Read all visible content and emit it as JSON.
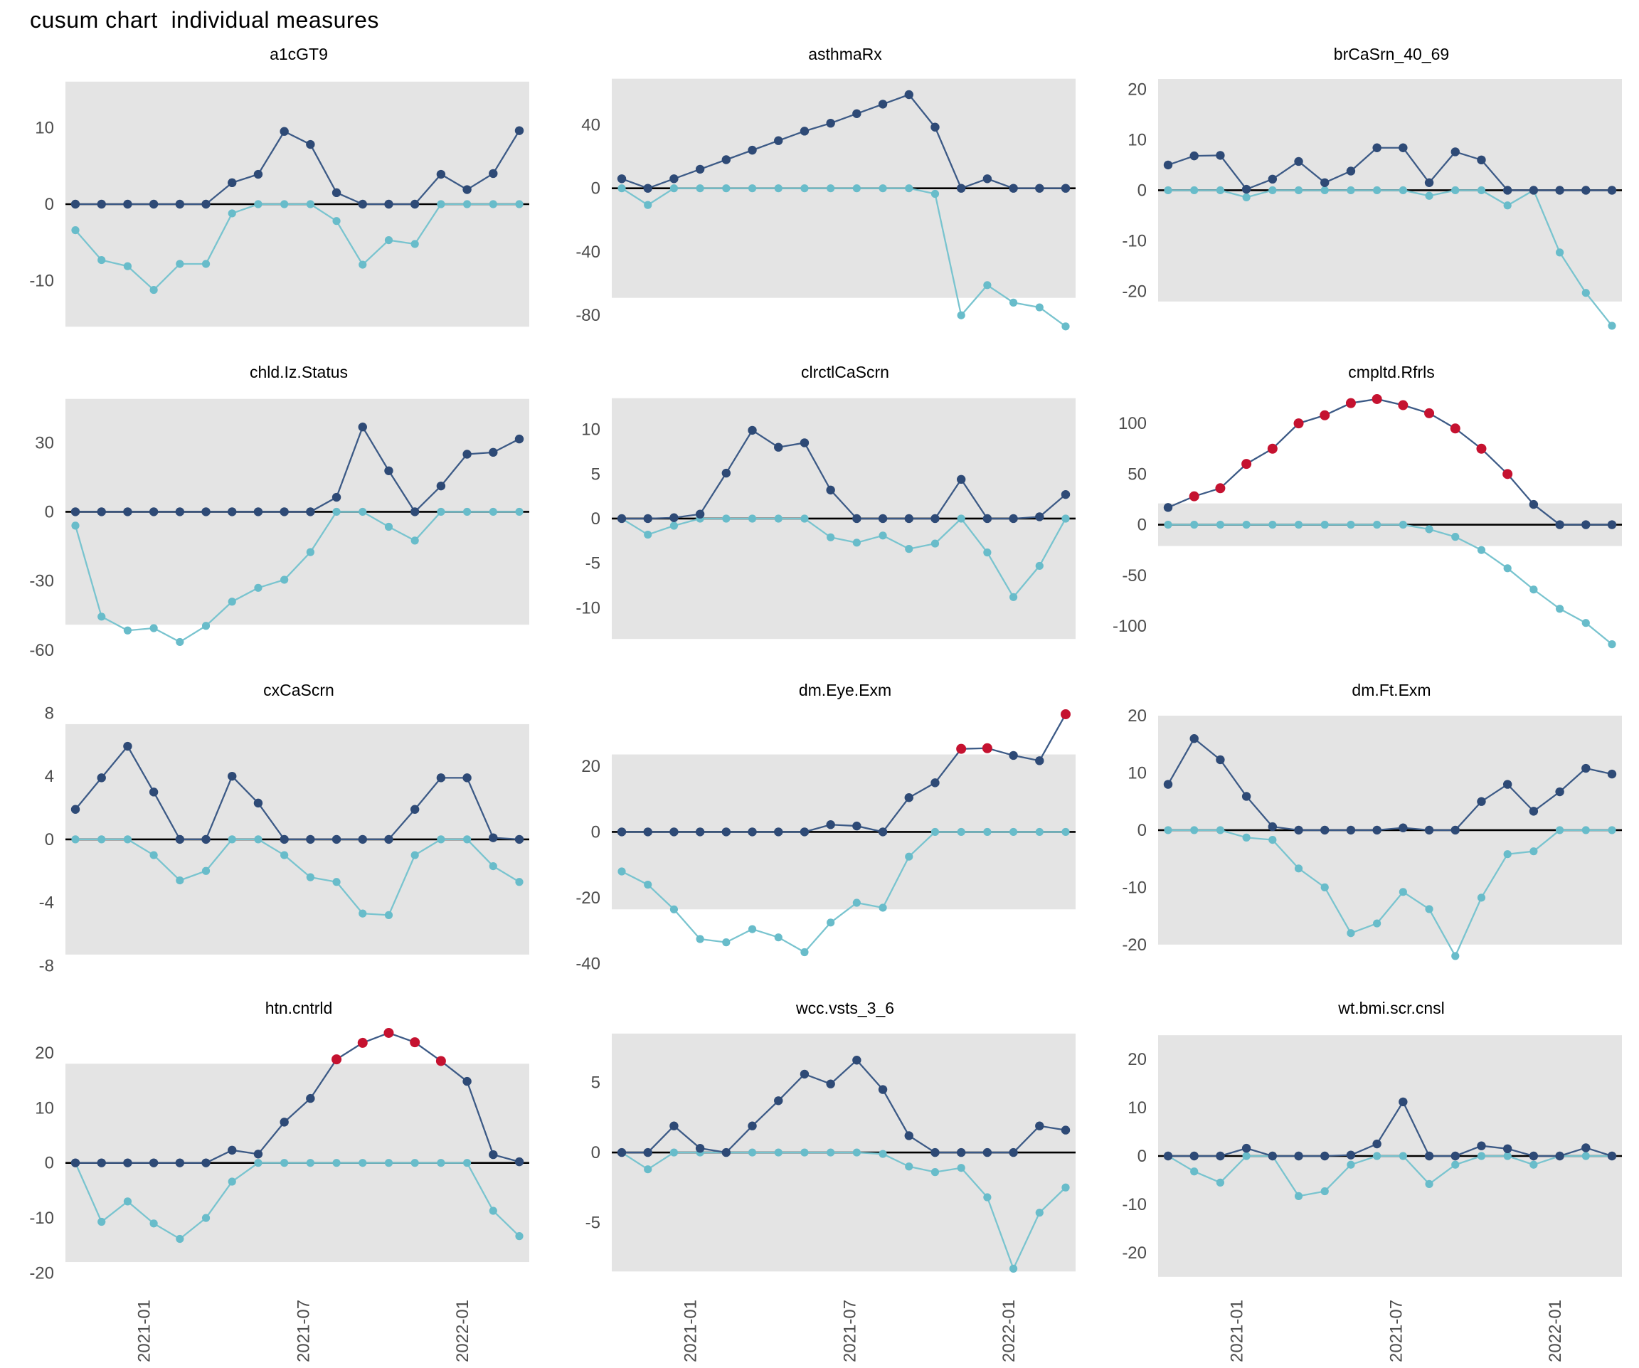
{
  "title": "cusum chart  individual measures",
  "colors": {
    "upper_marker": "#2e4a76",
    "upper_line": "#3c5a86",
    "lower_marker": "#68bcca",
    "lower_line": "#79c4cf",
    "signal": "#c51230",
    "band": "#e4e4e4",
    "zero_line": "#000000",
    "axis_text": "#4d4d4d"
  },
  "x_axis": {
    "n_points": 18,
    "tick_labels": [
      "2021-01",
      "2021-07",
      "2022-01"
    ],
    "tick_positions": [
      2.6,
      8.7,
      14.8
    ]
  },
  "chart_data": [
    {
      "type": "line",
      "title": "a1cGT9",
      "ylim": [
        -17,
        17
      ],
      "y_ticks": [
        10,
        0,
        -10
      ],
      "band": [
        -16,
        16
      ],
      "series": [
        {
          "name": "upper cusum",
          "values": [
            0,
            0,
            0,
            0,
            0,
            0,
            2.8,
            3.9,
            9.5,
            7.8,
            1.5,
            0,
            0,
            0,
            3.9,
            1.9,
            4.0,
            9.6
          ]
        },
        {
          "name": "lower cusum",
          "values": [
            -3.4,
            -7.3,
            -8.1,
            -11.2,
            -7.8,
            -7.8,
            -1.2,
            0,
            0,
            0,
            -2.2,
            -7.9,
            -4.7,
            -5.2,
            0,
            0,
            0,
            0
          ]
        }
      ],
      "signals_upper": []
    },
    {
      "type": "line",
      "title": "asthmaRx",
      "ylim": [
        -92,
        72
      ],
      "y_ticks": [
        40,
        0,
        -40,
        -80
      ],
      "band": [
        -69,
        69
      ],
      "series": [
        {
          "name": "upper cusum",
          "values": [
            6,
            0,
            6,
            12,
            18,
            24,
            30,
            36,
            41,
            47,
            53,
            59,
            38.5,
            0,
            6,
            0,
            0,
            0
          ]
        },
        {
          "name": "lower cusum",
          "values": [
            0,
            -10.5,
            0,
            0,
            0,
            0,
            0,
            0,
            0,
            0,
            0,
            0,
            -3.5,
            -80,
            -61,
            -72,
            -75,
            -87
          ]
        }
      ],
      "signals_upper": []
    },
    {
      "type": "line",
      "title": "brCaSrn_40_69",
      "ylim": [
        -28.5,
        23
      ],
      "y_ticks": [
        20,
        10,
        0,
        -10,
        -20
      ],
      "band": [
        -22,
        22
      ],
      "series": [
        {
          "name": "upper cusum",
          "values": [
            5,
            6.8,
            6.9,
            0.2,
            2.2,
            5.7,
            1.5,
            3.8,
            8.4,
            8.4,
            1.5,
            7.6,
            6,
            0,
            0,
            0,
            0,
            0
          ]
        },
        {
          "name": "lower cusum",
          "values": [
            0,
            0,
            0,
            -1.4,
            0,
            0,
            0,
            0,
            0,
            0,
            -1.1,
            0,
            0,
            -3,
            0,
            -12.3,
            -20.3,
            -26.8
          ]
        }
      ],
      "signals_upper": []
    },
    {
      "type": "line",
      "title": "chld.Iz.Status",
      "ylim": [
        -61,
        52
      ],
      "y_ticks": [
        30,
        0,
        -30,
        -60
      ],
      "band": [
        -49,
        49
      ],
      "series": [
        {
          "name": "upper cusum",
          "values": [
            0,
            0,
            0,
            0,
            0,
            0,
            0,
            0,
            0,
            0,
            6.3,
            36.8,
            17.8,
            0,
            11.2,
            25,
            25.8,
            31.6
          ]
        },
        {
          "name": "lower cusum",
          "values": [
            -6,
            -45.5,
            -51.5,
            -50.5,
            -56.5,
            -49.5,
            -39,
            -33,
            -29.5,
            -17.5,
            0,
            0,
            -6.5,
            -12.5,
            0,
            0,
            0,
            0
          ]
        }
      ],
      "signals_upper": []
    },
    {
      "type": "line",
      "title": "clrctlCaScrn",
      "ylim": [
        -15,
        14.2
      ],
      "y_ticks": [
        10,
        5,
        0,
        -5,
        -10
      ],
      "band": [
        -13.5,
        13.5
      ],
      "series": [
        {
          "name": "upper cusum",
          "values": [
            0,
            0,
            0.1,
            0.5,
            5.1,
            9.9,
            8,
            8.5,
            3.2,
            0,
            0,
            0,
            0,
            4.4,
            0,
            0,
            0.2,
            2.7
          ]
        },
        {
          "name": "lower cusum",
          "values": [
            0,
            -1.8,
            -0.8,
            0,
            0,
            0,
            0,
            0,
            -2.1,
            -2.7,
            -1.9,
            -3.4,
            -2.8,
            0,
            -3.8,
            -8.8,
            -5.3,
            0
          ]
        }
      ],
      "signals_upper": []
    },
    {
      "type": "line",
      "title": "cmpltd.Rfrls",
      "ylim": [
        -126,
        131
      ],
      "y_ticks": [
        100,
        50,
        0,
        -50,
        -100
      ],
      "band": [
        -21,
        21
      ],
      "series": [
        {
          "name": "upper cusum",
          "values": [
            17,
            28,
            36,
            60,
            75,
            100,
            108,
            120,
            124,
            118,
            110,
            95,
            75,
            50,
            20,
            0,
            0,
            0
          ]
        },
        {
          "name": "lower cusum",
          "values": [
            0,
            0,
            0,
            0,
            0,
            0,
            0,
            0,
            0,
            0,
            -4.5,
            -12,
            -25,
            -43,
            -64,
            -83,
            -97,
            -118
          ]
        }
      ],
      "signals_upper": [
        1,
        2,
        3,
        4,
        5,
        6,
        7,
        8,
        9,
        10,
        11,
        12,
        13
      ]
    },
    {
      "type": "line",
      "title": "cxCaScrn",
      "ylim": [
        -8.3,
        8.2
      ],
      "y_ticks": [
        8,
        4,
        0,
        -4,
        -8
      ],
      "band": [
        -7.3,
        7.3
      ],
      "series": [
        {
          "name": "upper cusum",
          "values": [
            1.9,
            3.9,
            5.9,
            3.0,
            0,
            0,
            4.0,
            2.3,
            0,
            0,
            0,
            0,
            0,
            1.9,
            3.9,
            3.9,
            0.1,
            0
          ]
        },
        {
          "name": "lower cusum",
          "values": [
            0,
            0,
            0,
            -1.0,
            -2.6,
            -2.0,
            0,
            0,
            -1.0,
            -2.4,
            -2.7,
            -4.7,
            -4.8,
            -1.0,
            0,
            0,
            -1.7,
            -2.7
          ]
        }
      ],
      "signals_upper": []
    },
    {
      "type": "line",
      "title": "dm.Eye.Exm",
      "ylim": [
        -42,
        37
      ],
      "y_ticks": [
        20,
        0,
        -20,
        -40
      ],
      "band": [
        -23.5,
        23.5
      ],
      "series": [
        {
          "name": "upper cusum",
          "values": [
            0,
            0,
            0,
            0,
            0,
            0,
            0,
            0,
            2.2,
            1.8,
            0,
            10.4,
            14.9,
            25.2,
            25.4,
            23.2,
            21.6,
            35.7
          ]
        },
        {
          "name": "lower cusum",
          "values": [
            -12,
            -16,
            -23.5,
            -32.5,
            -33.5,
            -29.5,
            -32,
            -36.5,
            -27.5,
            -21.5,
            -23,
            -7.5,
            0,
            0,
            0,
            0,
            0,
            0
          ]
        }
      ],
      "signals_upper": [
        13,
        14,
        17
      ]
    },
    {
      "type": "line",
      "title": "dm.Ft.Exm",
      "ylim": [
        -24.5,
        21
      ],
      "y_ticks": [
        20,
        10,
        0,
        -10,
        -20
      ],
      "band": [
        -20,
        20
      ],
      "series": [
        {
          "name": "upper cusum",
          "values": [
            8,
            16,
            12.3,
            5.9,
            0.6,
            0,
            0,
            0,
            0,
            0.4,
            0,
            0,
            5,
            8,
            3.3,
            6.7,
            10.8,
            9.8
          ]
        },
        {
          "name": "lower cusum",
          "values": [
            0,
            0,
            0,
            -1.3,
            -1.7,
            -6.7,
            -10,
            -18,
            -16.3,
            -10.8,
            -13.8,
            -22,
            -11.8,
            -4.2,
            -3.7,
            0,
            0,
            0
          ]
        }
      ],
      "signals_upper": []
    },
    {
      "type": "line",
      "title": "htn.cntrld",
      "ylim": [
        -22,
        24.5
      ],
      "y_ticks": [
        20,
        10,
        0,
        -10,
        -20
      ],
      "band": [
        -18,
        18
      ],
      "series": [
        {
          "name": "upper cusum",
          "values": [
            0,
            0,
            0,
            0,
            0,
            0,
            2.3,
            1.6,
            7.4,
            11.7,
            18.8,
            21.8,
            23.6,
            21.9,
            18.5,
            14.8,
            1.5,
            0.2
          ]
        },
        {
          "name": "lower cusum",
          "values": [
            0,
            -10.7,
            -7,
            -11,
            -13.8,
            -10,
            -3.4,
            0,
            0,
            0,
            0,
            0,
            0,
            0,
            0,
            0,
            -8.7,
            -13.3
          ]
        }
      ],
      "signals_upper": [
        10,
        11,
        12,
        13,
        14
      ]
    },
    {
      "type": "line",
      "title": "wcc.vsts_3_6",
      "ylim": [
        -9.4,
        8.9
      ],
      "y_ticks": [
        5,
        0,
        -5
      ],
      "band": [
        -8.5,
        8.5
      ],
      "series": [
        {
          "name": "upper cusum",
          "values": [
            0,
            0,
            1.9,
            0.3,
            0,
            1.9,
            3.7,
            5.6,
            4.9,
            6.6,
            4.5,
            1.2,
            0,
            0,
            0,
            0,
            1.9,
            1.6
          ]
        },
        {
          "name": "lower cusum",
          "values": [
            0,
            -1.2,
            0,
            0,
            0,
            0,
            0,
            0,
            0,
            0,
            -0.1,
            -1.0,
            -1.4,
            -1.1,
            -3.2,
            -8.3,
            -4.3,
            -2.5
          ]
        }
      ],
      "signals_upper": []
    },
    {
      "type": "line",
      "title": "wt.bmi.scr.cnsl",
      "ylim": [
        -26.5,
        26.5
      ],
      "y_ticks": [
        20,
        10,
        0,
        -10,
        -20
      ],
      "band": [
        -25,
        25
      ],
      "series": [
        {
          "name": "upper cusum",
          "values": [
            0,
            0,
            0,
            1.6,
            0,
            0,
            0,
            0.2,
            2.5,
            11.2,
            0,
            0,
            2.1,
            1.5,
            0,
            0,
            1.7,
            0
          ]
        },
        {
          "name": "lower cusum",
          "values": [
            0,
            -3.2,
            -5.5,
            0,
            0,
            -8.3,
            -7.3,
            -1.8,
            0,
            0,
            -5.8,
            -1.8,
            0,
            0,
            -1.8,
            0,
            0,
            0
          ]
        }
      ],
      "signals_upper": []
    }
  ]
}
